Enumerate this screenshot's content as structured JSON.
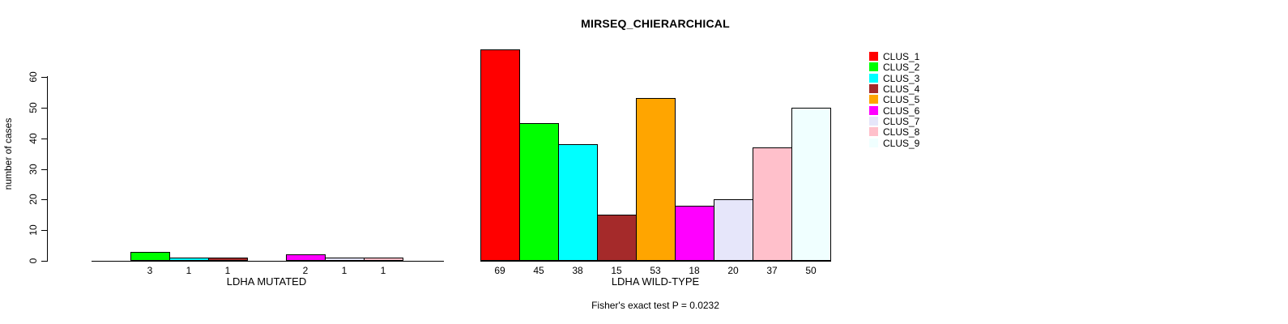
{
  "title": "MIRSEQ_CHIERARCHICAL",
  "footer": "Fisher's exact test P = 0.0232",
  "y_axis": {
    "label": "number of cases",
    "ticks": [
      0,
      10,
      20,
      30,
      40,
      50,
      60
    ],
    "max": 60
  },
  "legend": {
    "position": "right",
    "items": [
      {
        "label": "CLUS_1",
        "color": "#FF0000"
      },
      {
        "label": "CLUS_2",
        "color": "#00FF00"
      },
      {
        "label": "CLUS_3",
        "color": "#00FFFF"
      },
      {
        "label": "CLUS_4",
        "color": "#A52A2A"
      },
      {
        "label": "CLUS_5",
        "color": "#FFA500"
      },
      {
        "label": "CLUS_6",
        "color": "#FF00FF"
      },
      {
        "label": "CLUS_7",
        "color": "#E6E6FA"
      },
      {
        "label": "CLUS_8",
        "color": "#FFC0CB"
      },
      {
        "label": "CLUS_9",
        "color": "#F0FFFF"
      }
    ]
  },
  "chart_data": {
    "type": "bar",
    "title": "MIRSEQ_CHIERARCHICAL",
    "categories": [
      "CLUS_1",
      "CLUS_2",
      "CLUS_3",
      "CLUS_4",
      "CLUS_5",
      "CLUS_6",
      "CLUS_7",
      "CLUS_8",
      "CLUS_9"
    ],
    "colors": [
      "#FF0000",
      "#00FF00",
      "#00FFFF",
      "#A52A2A",
      "#FFA500",
      "#FF00FF",
      "#E6E6FA",
      "#FFC0CB",
      "#F0FFFF"
    ],
    "series": [
      {
        "name": "LDHA MUTATED",
        "values": [
          0,
          3,
          1,
          1,
          0,
          2,
          1,
          1,
          0
        ]
      },
      {
        "name": "LDHA WILD-TYPE",
        "values": [
          69,
          45,
          38,
          15,
          53,
          18,
          20,
          37,
          50
        ]
      }
    ],
    "bar_value_labels": "shown under each nonzero bar",
    "ylabel": "number of cases",
    "ylim": [
      0,
      60
    ],
    "grid": false,
    "legend_position": "right",
    "annotation": "Fisher's exact test P = 0.0232"
  }
}
